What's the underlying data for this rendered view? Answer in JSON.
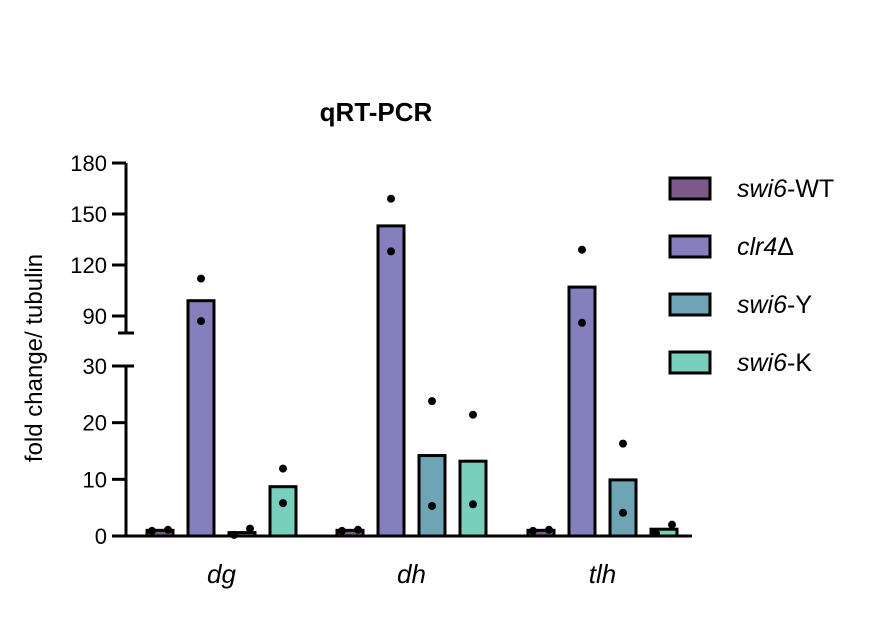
{
  "chart_data": {
    "type": "bar",
    "title": "qRT-PCR",
    "ylabel": "fold change/ tubulin",
    "xlabel": "",
    "categories": [
      "dg",
      "dh",
      "tlh"
    ],
    "y_axis": {
      "broken": true,
      "lower_segment": {
        "range": [
          0,
          30
        ],
        "ticks": [
          "0",
          "10",
          "20",
          "30"
        ]
      },
      "upper_segment": {
        "range": [
          80,
          180
        ],
        "ticks": [
          "90",
          "120",
          "150",
          "180"
        ]
      }
    },
    "series": [
      {
        "name": "swi6-WT",
        "name_italic": "swi6",
        "name_plain": "-WT",
        "color": "#7b5a88",
        "values": [
          1.0,
          1.0,
          1.0
        ],
        "points": [
          [
            0.9,
            1.1
          ],
          [
            0.9,
            1.1
          ],
          [
            0.9,
            1.1
          ]
        ]
      },
      {
        "name": "clr4Δ",
        "name_italic": "clr4",
        "name_plain": "Δ",
        "color": "#8480bd",
        "values": [
          99,
          143,
          107
        ],
        "points": [
          [
            112,
            87
          ],
          [
            159,
            128
          ],
          [
            129,
            86
          ]
        ]
      },
      {
        "name": "swi6-Y",
        "name_italic": "swi6",
        "name_plain": "-Y",
        "color": "#6da5b7",
        "values": [
          0.6,
          14.2,
          9.9
        ],
        "points": [
          [
            0.2,
            1.3
          ],
          [
            23.8,
            5.3
          ],
          [
            16.3,
            4.1
          ]
        ]
      },
      {
        "name": "swi6-K",
        "name_italic": "swi6",
        "name_plain": "-K",
        "color": "#79cfbd",
        "values": [
          8.7,
          13.2,
          1.2
        ],
        "points": [
          [
            11.9,
            5.8
          ],
          [
            21.4,
            5.6
          ],
          [
            2.0,
            0.5
          ]
        ]
      }
    ],
    "legend_position": "right"
  }
}
